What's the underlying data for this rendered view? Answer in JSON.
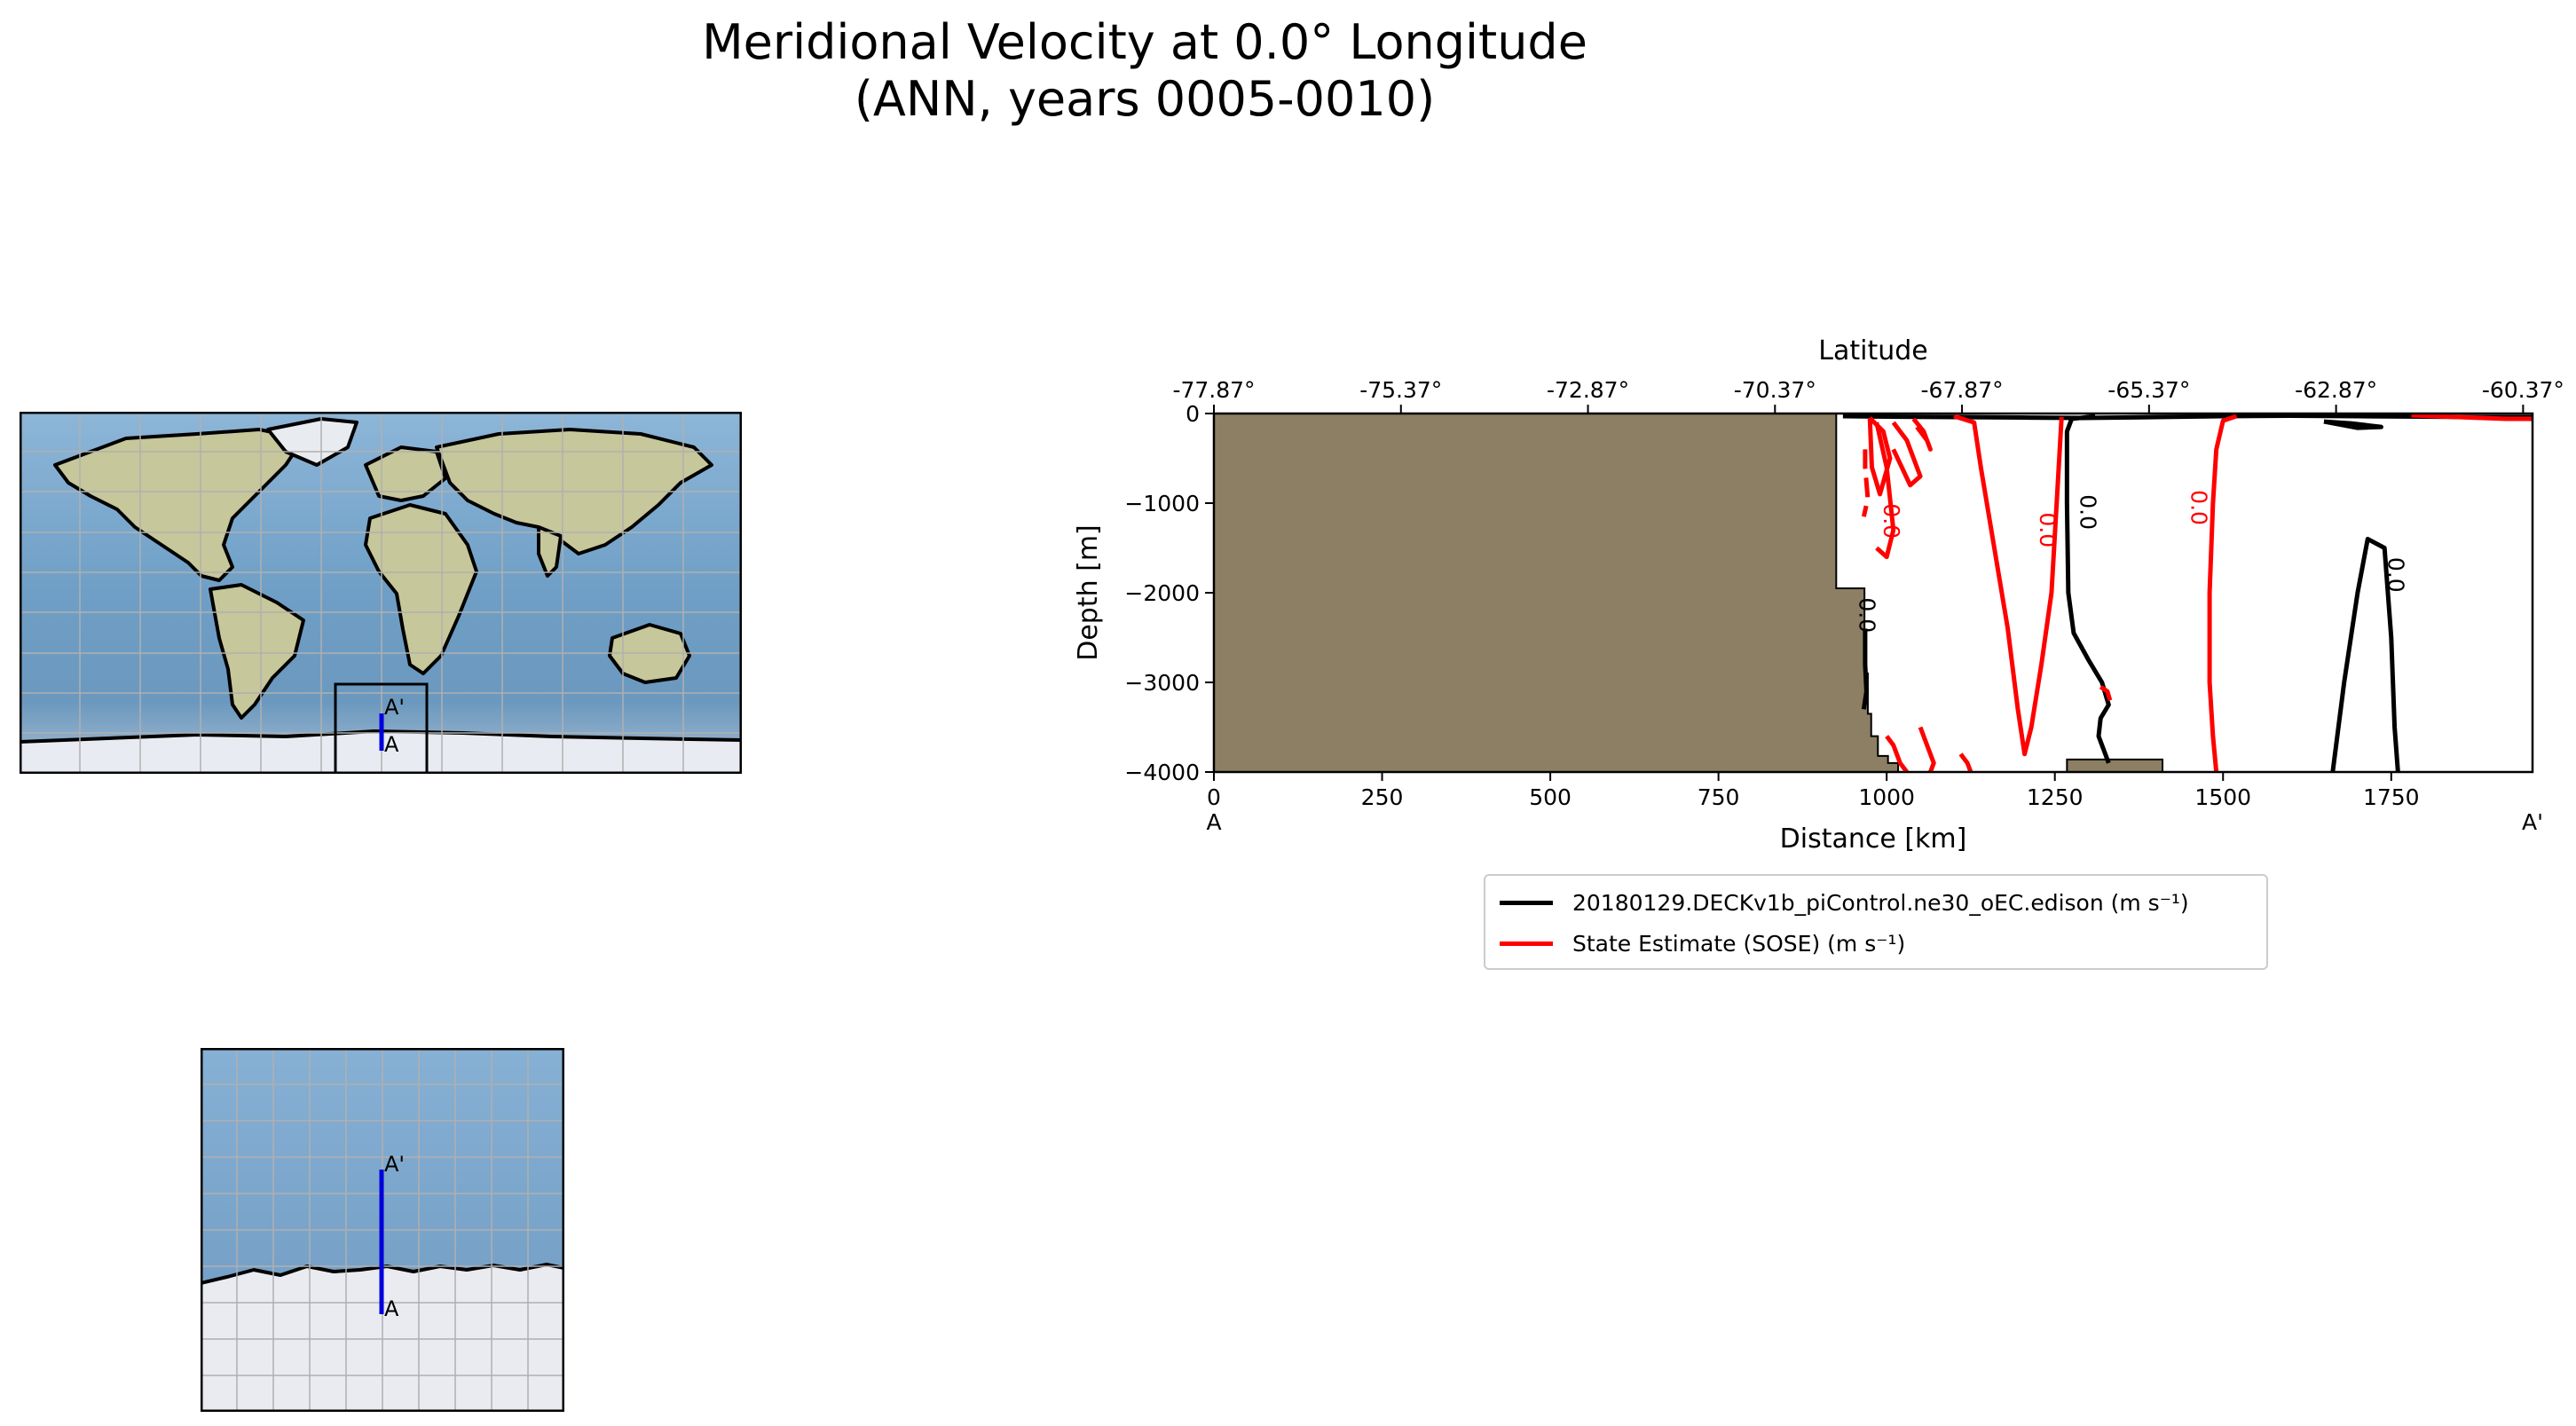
{
  "title": {
    "line1": "Meridional Velocity at 0.0° Longitude",
    "line2": "(ANN, years 0005-0010)"
  },
  "colors": {
    "land": "#8c7f63",
    "model": "#000000",
    "obs": "#ff0000",
    "transect": "#0000dd",
    "ocean": "#7fa9cc",
    "ice": "#e4e6ec"
  },
  "maps": {
    "global": {
      "section_start": "A",
      "section_end": "A'"
    },
    "inset": {
      "section_start": "A",
      "section_end": "A'"
    }
  },
  "chart_data": {
    "type": "line",
    "title": "",
    "xlabel": "Distance [km]",
    "ylabel": "Depth [m]",
    "top_xlabel": "Latitude",
    "xlim": [
      0,
      1960
    ],
    "ylim": [
      -4000,
      0
    ],
    "x_ticks": [
      0,
      250,
      500,
      750,
      1000,
      1250,
      1500,
      1750
    ],
    "x_tick_labels": [
      "0",
      "250",
      "500",
      "750",
      "1000",
      "1250",
      "1500",
      "1750"
    ],
    "y_ticks": [
      0,
      -1000,
      -2000,
      -3000,
      -4000
    ],
    "y_tick_labels": [
      "0",
      "−1000",
      "−2000",
      "−3000",
      "−4000"
    ],
    "top_ticks_km": [
      0,
      278,
      556,
      834,
      1112,
      1390,
      1668,
      1946
    ],
    "top_tick_labels": [
      "-77.87°",
      "-75.37°",
      "-72.87°",
      "-70.37°",
      "-67.87°",
      "-65.37°",
      "-62.87°",
      "-60.37°"
    ],
    "start_label": "A",
    "end_label": "A'",
    "contour_label": "0.0",
    "land": {
      "x": [
        0,
        925,
        925,
        967,
        967,
        972,
        972,
        977,
        977,
        987,
        987,
        1002,
        1002,
        1017,
        1017,
        0
      ],
      "y": [
        0,
        0,
        -1950,
        -1950,
        -2900,
        -2900,
        -3350,
        -3350,
        -3600,
        -3600,
        -3820,
        -3820,
        -3900,
        -3900,
        -4000,
        -4000
      ]
    },
    "seamount": {
      "x": [
        1268,
        1268,
        1410,
        1410
      ],
      "y": [
        -4000,
        -3860,
        -3860,
        -4000
      ]
    },
    "series": [
      {
        "name": "20180129.DECKv1b_piControl.ne30_oEC.edison (m s⁻¹)",
        "legend_superscript": "−1",
        "color": "model",
        "lines": [
          {
            "x": [
              935,
              1000,
              1100,
              1200,
              1290,
              1400,
              1500,
              1600,
              1700,
              1800,
              1900,
              1960
            ],
            "y": [
              -30,
              -35,
              -40,
              -45,
              -50,
              -40,
              -30,
              -25,
              -30,
              -35,
              -40,
              -40
            ]
          },
          {
            "x": [
              1310,
              1275,
              1268,
              1268,
              1270,
              1278,
              1300,
              1320,
              1330,
              1318,
              1315,
              1325,
              1330
            ],
            "y": [
              -30,
              -60,
              -200,
              -1000,
              -2000,
              -2450,
              -2750,
              -3000,
              -3250,
              -3400,
              -3600,
              -3800,
              -3900
            ]
          },
          {
            "x": [
              968,
              968,
              970,
              966
            ],
            "y": [
              -2400,
              -2800,
              -3100,
              -3300
            ]
          },
          {
            "x": [
              1663,
              1680,
              1700,
              1715,
              1740,
              1750,
              1755,
              1760
            ],
            "y": [
              -4000,
              -3000,
              -2000,
              -1400,
              -1500,
              -2500,
              -3500,
              -4000
            ]
          },
          {
            "x": [
              1650,
              1690,
              1735,
              1700,
              1650
            ],
            "y": [
              -90,
              -110,
              -150,
              -160,
              -90
            ]
          }
        ]
      },
      {
        "name": "State Estimate (SOSE) (m s⁻¹)",
        "legend_superscript": "−1",
        "color": "obs",
        "lines": [
          {
            "x": [
              1100,
              1130,
              1140,
              1160,
              1180,
              1195,
              1205,
              1215,
              1230,
              1245,
              1255,
              1260
            ],
            "y": [
              -30,
              -100,
              -600,
              -1500,
              -2400,
              -3300,
              -3800,
              -3500,
              -2800,
              -2000,
              -700,
              -40
            ]
          },
          {
            "x": [
              1520,
              1500,
              1490,
              1485,
              1480,
              1480,
              1485,
              1490
            ],
            "y": [
              -30,
              -80,
              -400,
              -1000,
              -2000,
              -3000,
              -3600,
              -4000
            ]
          },
          {
            "x": [
              968,
              968,
              972,
              966
            ],
            "y": [
              -400,
              -600,
              -950,
              -1150
            ]
          },
          {
            "x": [
              985,
              1000,
              1010,
              1000,
              985
            ],
            "y": [
              -100,
              -600,
              -1300,
              -1600,
              -1500
            ]
          },
          {
            "x": [
              1010,
              1030,
              1050,
              1035,
              1010
            ],
            "y": [
              -100,
              -300,
              -700,
              -800,
              -400
            ]
          },
          {
            "x": [
              975,
              995,
              1005,
              990,
              978,
              975
            ],
            "y": [
              -50,
              -200,
              -500,
              -900,
              -600,
              -50
            ]
          },
          {
            "x": [
              1040,
              1055,
              1065,
              1060,
              1045
            ],
            "y": [
              -60,
              -200,
              -400,
              -300,
              -150
            ]
          },
          {
            "x": [
              1000,
              1010,
              1020,
              1030
            ],
            "y": [
              -3600,
              -3700,
              -3900,
              -4000
            ]
          },
          {
            "x": [
              1050,
              1060,
              1070,
              1065
            ],
            "y": [
              -3500,
              -3700,
              -3900,
              -4000
            ]
          },
          {
            "x": [
              1110,
              1120,
              1125
            ],
            "y": [
              -3800,
              -3900,
              -4000
            ]
          },
          {
            "x": [
              1318,
              1328,
              1332
            ],
            "y": [
              -3050,
              -3100,
              -3200
            ]
          },
          {
            "x": [
              1780,
              1850,
              1920,
              1960
            ],
            "y": [
              -20,
              -40,
              -60,
              -60
            ]
          }
        ]
      }
    ]
  }
}
